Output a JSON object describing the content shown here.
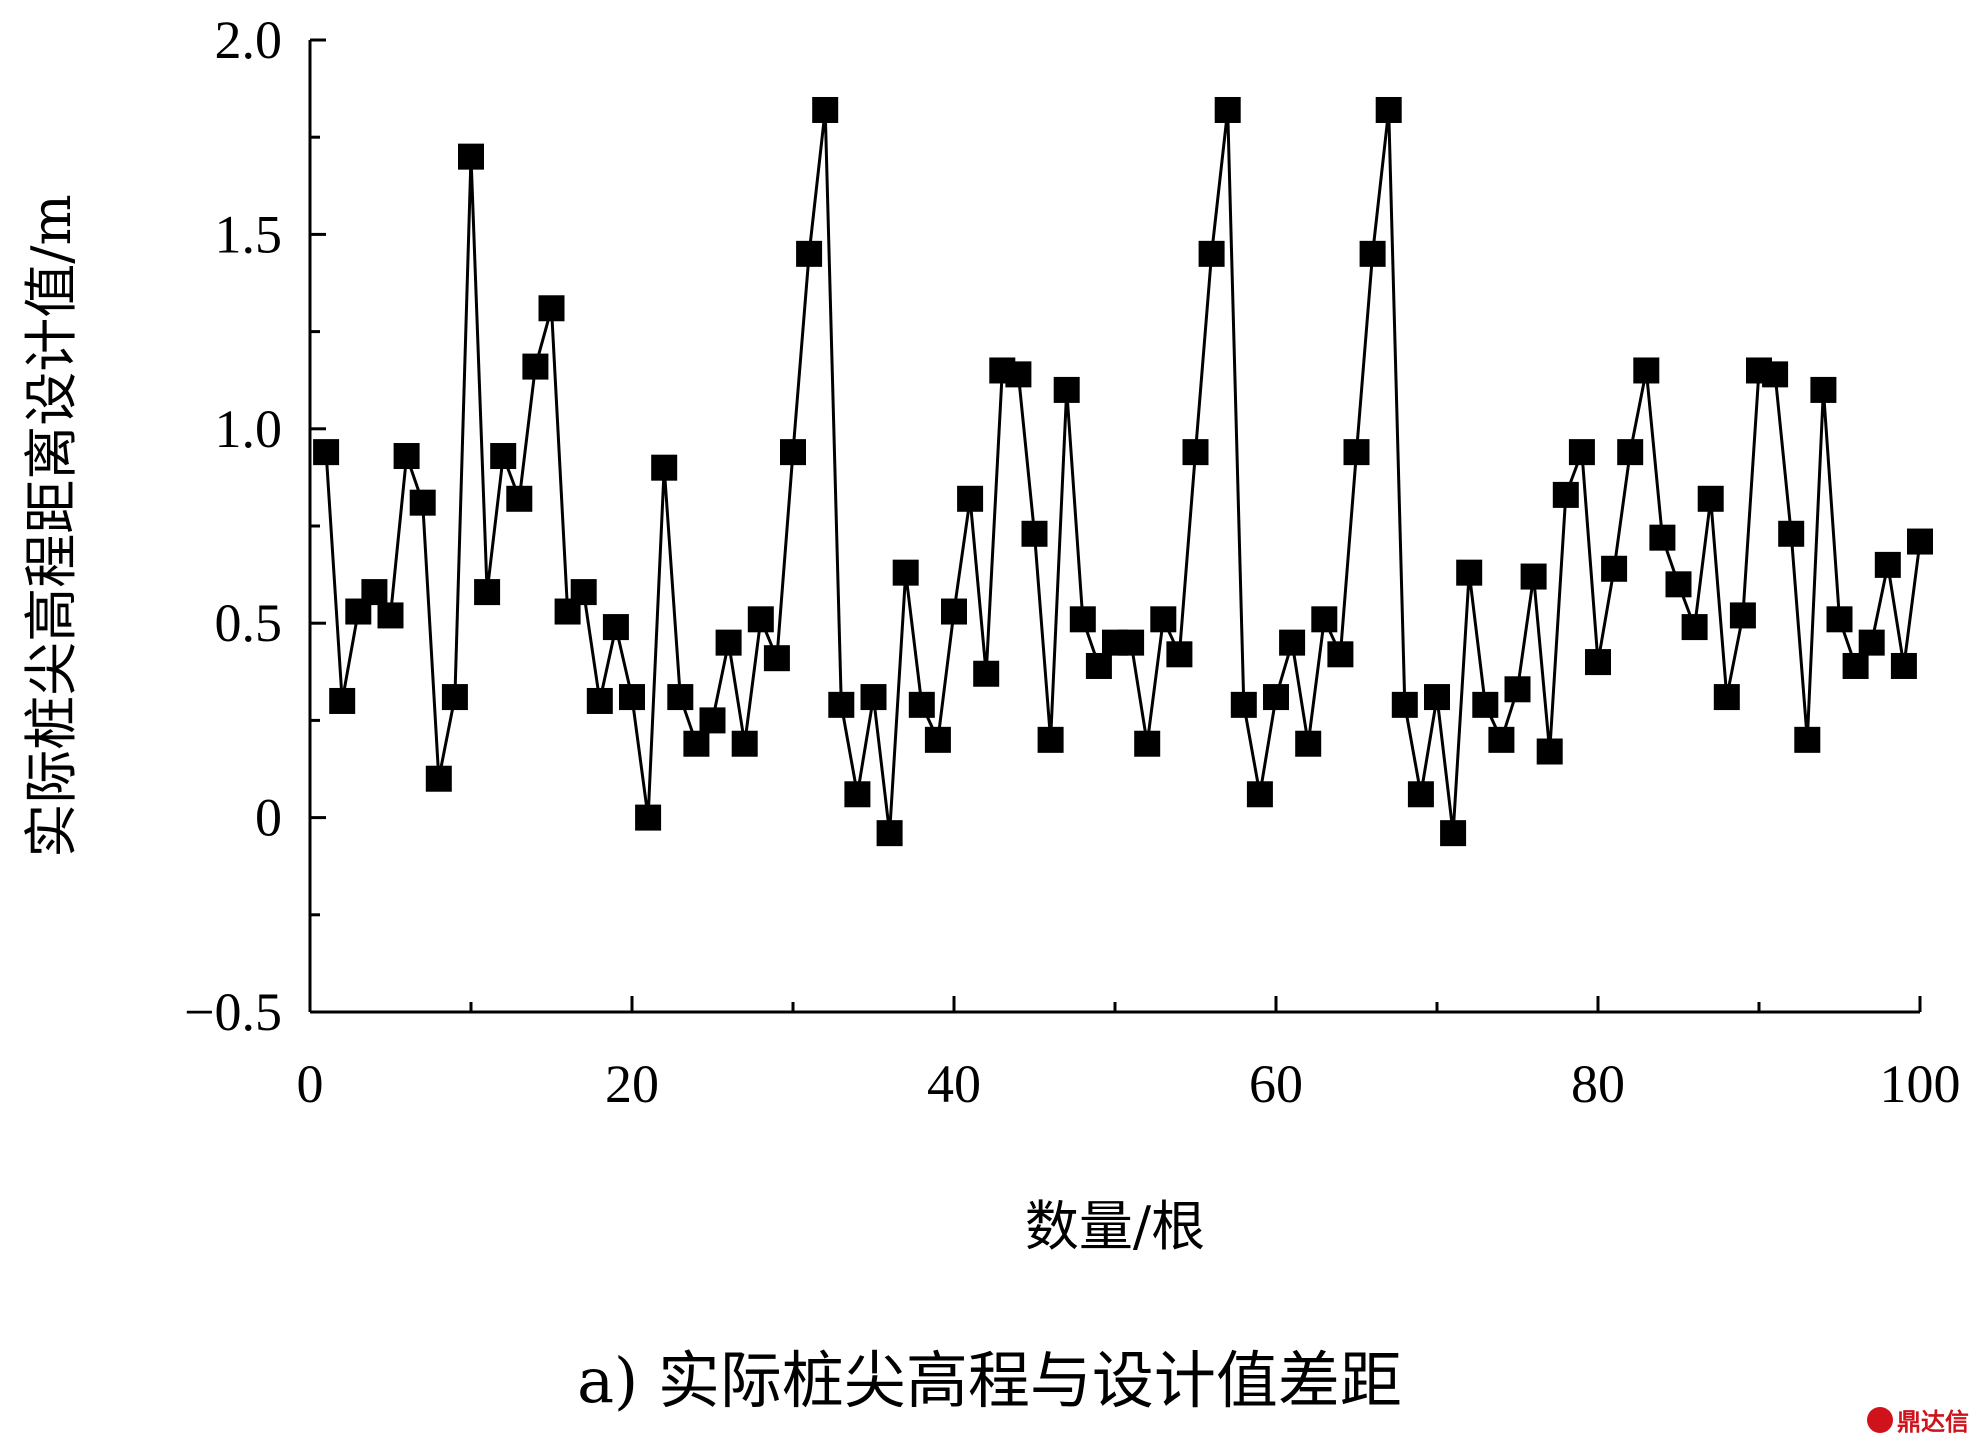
{
  "chart_data": {
    "type": "line",
    "xlabel": "数量/根",
    "ylabel": "实际桩尖高程距离设计值/m",
    "caption": "a) 实际桩尖高程与设计值差距",
    "xlim": [
      0,
      100
    ],
    "ylim": [
      -0.5,
      2.0
    ],
    "x_ticks": [
      "0",
      "20",
      "40",
      "60",
      "80",
      "100"
    ],
    "y_ticks": [
      "−0.5",
      "0",
      "0.5",
      "1.0",
      "1.5",
      "2.0"
    ],
    "marker": "filled-square",
    "color": "#000000",
    "series": [
      {
        "name": "差距",
        "x": [
          1,
          2,
          3,
          4,
          5,
          6,
          7,
          8,
          9,
          10,
          11,
          12,
          13,
          14,
          15,
          16,
          17,
          18,
          19,
          20,
          21,
          22,
          23,
          24,
          25,
          26,
          27,
          28,
          29,
          30,
          31,
          32,
          33,
          34,
          35,
          36,
          37,
          38,
          39,
          40,
          41,
          42,
          43,
          44,
          45,
          46,
          47,
          48,
          49,
          50,
          51,
          52,
          53,
          54,
          55,
          56,
          57,
          58,
          59,
          60,
          61,
          62,
          63,
          64,
          65,
          66,
          67,
          68,
          69,
          70,
          71,
          72,
          73,
          74,
          75,
          76,
          77,
          78,
          79,
          80,
          81,
          82,
          83,
          84,
          85,
          86,
          87,
          88,
          89,
          90,
          91,
          92,
          93,
          94,
          95,
          96,
          97,
          98,
          99,
          100
        ],
        "values": [
          0.94,
          0.3,
          0.53,
          0.58,
          0.52,
          0.93,
          0.81,
          0.1,
          0.31,
          1.7,
          0.58,
          0.93,
          0.82,
          1.16,
          1.31,
          0.53,
          0.58,
          0.3,
          0.49,
          0.31,
          0.0,
          0.9,
          0.31,
          0.19,
          0.25,
          0.45,
          0.19,
          0.51,
          0.41,
          0.94,
          1.45,
          1.82,
          0.29,
          0.06,
          0.31,
          -0.04,
          0.63,
          0.29,
          0.2,
          0.53,
          0.82,
          0.37,
          1.15,
          1.14,
          0.73,
          0.2,
          1.1,
          0.51,
          0.39,
          0.45,
          0.45,
          0.19,
          0.51,
          0.42,
          0.94,
          1.45,
          1.82,
          0.29,
          0.06,
          0.31,
          0.45,
          0.19,
          0.51,
          0.42,
          0.94,
          1.45,
          1.82,
          0.29,
          0.06,
          0.31,
          -0.04,
          0.63,
          0.29,
          0.2,
          0.33,
          0.62,
          0.17,
          0.83,
          0.94,
          0.4,
          0.64,
          0.94,
          1.15,
          0.72,
          0.6,
          0.49,
          0.82,
          0.31,
          0.52,
          1.15,
          1.14,
          0.73,
          0.2,
          1.1,
          0.51,
          0.39,
          0.45,
          0.65,
          0.39,
          0.71
        ]
      }
    ]
  },
  "watermark": "鼎达信"
}
